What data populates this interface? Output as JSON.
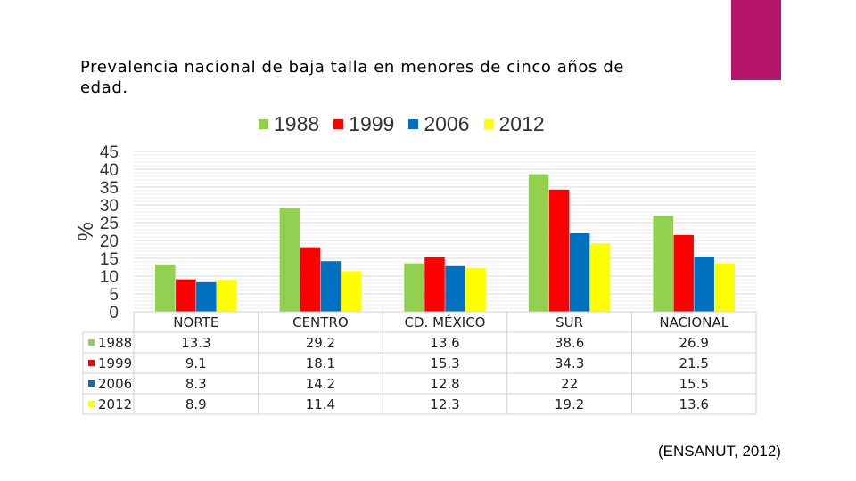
{
  "slide": {
    "title": "Prevalencia nacional de baja talla en menores de cinco años de edad.",
    "source": "(ENSANUT, 2012)",
    "accent_color": "#b5166b"
  },
  "chart_data": {
    "type": "bar",
    "title": "",
    "ylabel": "%",
    "xlabel": "",
    "ylim": [
      0,
      45
    ],
    "yticks": [
      0,
      5,
      10,
      15,
      20,
      25,
      30,
      35,
      40,
      45
    ],
    "grid": true,
    "legend_position": "top",
    "data_table": true,
    "categories": [
      "NORTE",
      "CENTRO",
      "CD. MÉXICO",
      "SUR",
      "NACIONAL"
    ],
    "series": [
      {
        "name": "1988",
        "color": "#92d050",
        "values": [
          13.3,
          29.2,
          13.6,
          38.6,
          26.9
        ],
        "labels": [
          "13.3",
          "29.2",
          "13.6",
          "38.6",
          "26.9"
        ]
      },
      {
        "name": "1999",
        "color": "#ff0000",
        "values": [
          9.1,
          18.1,
          15.3,
          34.3,
          21.5
        ],
        "labels": [
          "9.1",
          "18.1",
          "15.3",
          "34.3",
          "21.5"
        ]
      },
      {
        "name": "2006",
        "color": "#0070c0",
        "values": [
          8.3,
          14.2,
          12.8,
          22,
          15.5
        ],
        "labels": [
          "8.3",
          "14.2",
          "12.8",
          "22",
          "15.5"
        ]
      },
      {
        "name": "2012",
        "color": "#ffff00",
        "values": [
          8.9,
          11.4,
          12.3,
          19.2,
          13.6
        ],
        "labels": [
          "8.9",
          "11.4",
          "12.3",
          "19.2",
          "13.6"
        ]
      }
    ]
  }
}
